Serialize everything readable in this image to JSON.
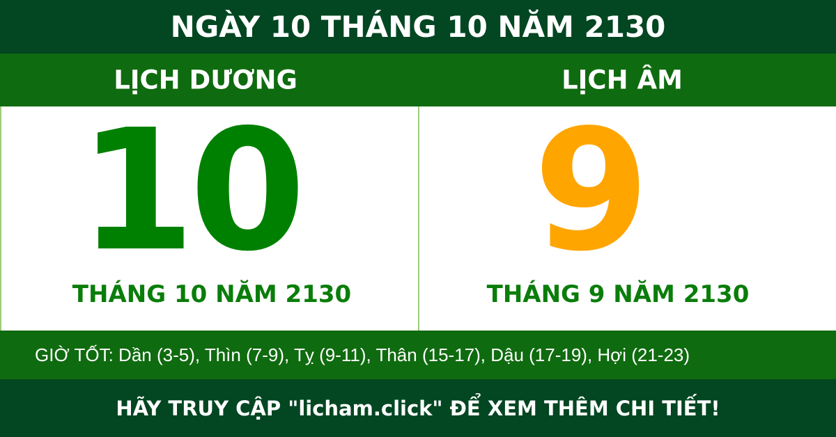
{
  "header": {
    "title": "NGÀY 10 THÁNG 10 NĂM 2130"
  },
  "solar": {
    "label": "LỊCH DƯƠNG",
    "day": "10",
    "month_year": "THÁNG 10 NĂM 2130",
    "color": "#008000"
  },
  "lunar": {
    "label": "LỊCH ÂM",
    "day": "9",
    "month_year": "THÁNG 9 NĂM 2130",
    "color": "#ffa500"
  },
  "good_hours": "GIỜ TỐT: Dần (3-5), Thìn (7-9), Tỵ (9-11), Thân (15-17), Dậu (17-19), Hợi (21-23)",
  "footer": "HÃY TRUY CẬP \"licham.click\" ĐỂ XEM THÊM CHI TIẾT!",
  "colors": {
    "dark_green": "#024622",
    "green": "#0f6b0f"
  }
}
